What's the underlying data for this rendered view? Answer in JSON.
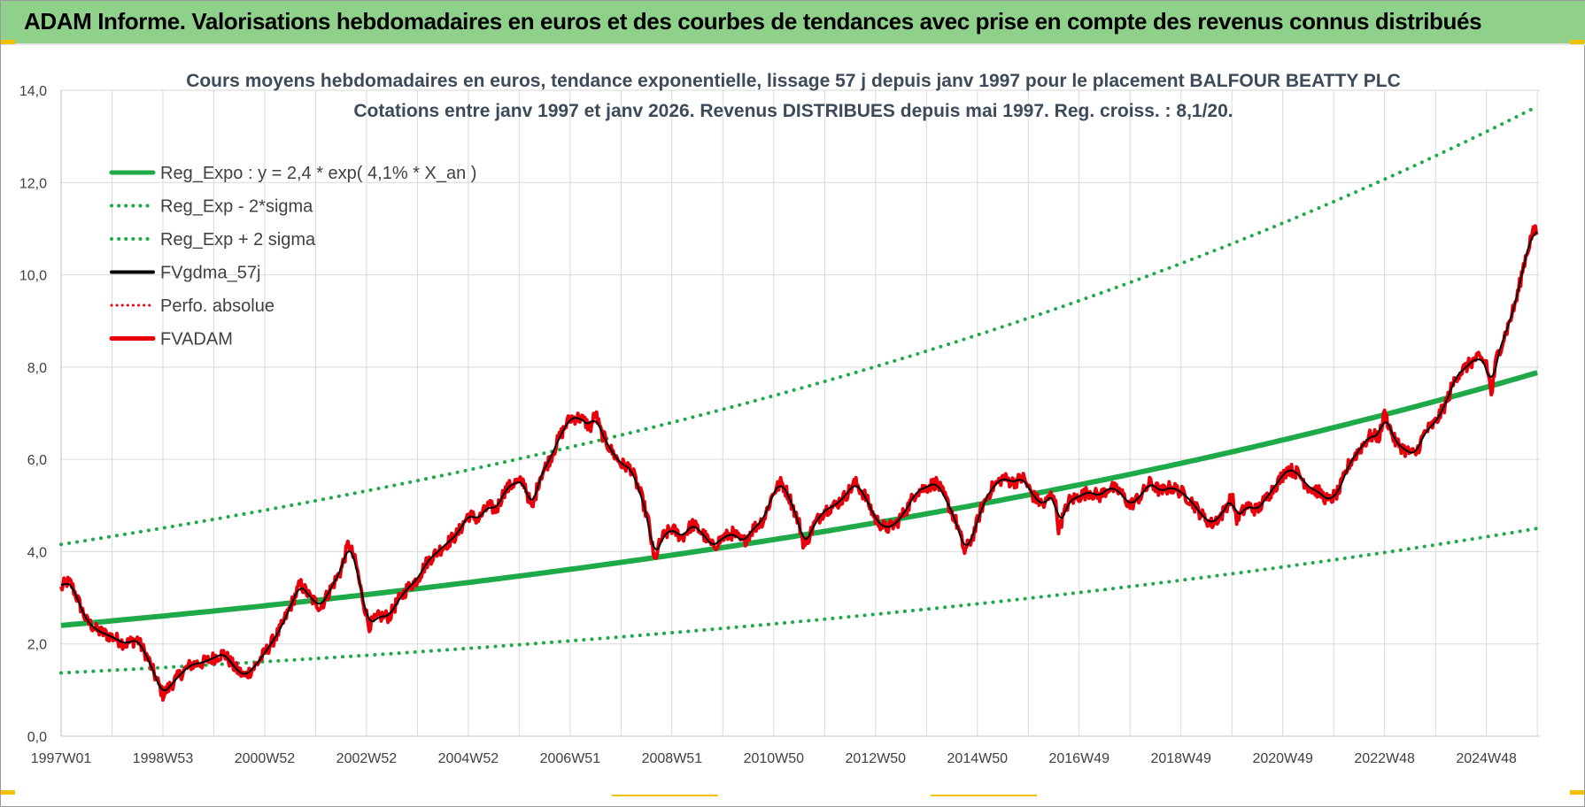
{
  "banner": {
    "title": "ADAM Informe. Valorisations hebdomadaires en euros et des courbes de tendances avec prise en compte des revenus connus distribués"
  },
  "colors": {
    "banner_bg": "#8fd18a",
    "trend": "#1faa4a",
    "black_line": "#000000",
    "red_line": "#e8000b",
    "grid": "#d9d9d9",
    "corner_marks": "#f2c200"
  },
  "chart_data": {
    "type": "line",
    "title_line1": "Cours moyens hebdomadaires en euros, tendance exponentielle, lissage 57 j depuis janv 1997  pour le placement BALFOUR BEATTY PLC",
    "title_line2": "Cotations entre janv 1997 et janv 2026. Revenus DISTRIBUES depuis mai 1997.  Reg. croiss. : 8,1/20.",
    "xlim": [
      1997.0,
      2026.05
    ],
    "ylim": [
      0,
      14
    ],
    "y_ticks": [
      "0,0",
      "2,0",
      "4,0",
      "6,0",
      "8,0",
      "10,0",
      "12,0",
      "14,0"
    ],
    "x_tick_labels": [
      "1997W01",
      "1998W53",
      "2000W52",
      "2002W52",
      "2004W52",
      "2006W51",
      "2008W51",
      "2010W50",
      "2012W50",
      "2014W50",
      "2016W49",
      "2018W49",
      "2020W49",
      "2022W48",
      "2024W48"
    ],
    "x_tick_positions": [
      1997.0,
      1999.0,
      2001.0,
      2003.0,
      2005.0,
      2007.0,
      2009.0,
      2011.0,
      2013.0,
      2015.0,
      2017.0,
      2019.0,
      2021.0,
      2023.0,
      2025.0
    ],
    "grid": true,
    "legend_position": "top-left",
    "legend": [
      {
        "label": "Reg_Expo : y = 2,4 * exp( 4,1% *  X_an )",
        "style": "solid-green"
      },
      {
        "label": "Reg_Exp - 2*sigma",
        "style": "dotted-green"
      },
      {
        "label": "Reg_Exp + 2 sigma",
        "style": "dotted-green"
      },
      {
        "label": "FVgdma_57j",
        "style": "solid-black"
      },
      {
        "label": "Perfo. absolue",
        "style": "dotted-red"
      },
      {
        "label": "FVADAM",
        "style": "solid-red"
      }
    ],
    "trend": {
      "a": 2.4,
      "b": 0.041,
      "lower_factor": 0.5714,
      "upper_factor": 1.7321,
      "x0": 1997.0
    },
    "fvadam_points": [
      [
        1997.0,
        3.2
      ],
      [
        1997.1,
        3.35
      ],
      [
        1997.2,
        3.3
      ],
      [
        1997.35,
        2.9
      ],
      [
        1997.5,
        2.5
      ],
      [
        1997.7,
        2.3
      ],
      [
        1997.9,
        2.2
      ],
      [
        1998.1,
        2.1
      ],
      [
        1998.25,
        2.0
      ],
      [
        1998.5,
        2.1
      ],
      [
        1998.7,
        1.7
      ],
      [
        1998.85,
        1.3
      ],
      [
        1999.0,
        0.9
      ],
      [
        1999.15,
        1.1
      ],
      [
        1999.35,
        1.35
      ],
      [
        1999.55,
        1.55
      ],
      [
        1999.8,
        1.6
      ],
      [
        2000.0,
        1.7
      ],
      [
        2000.2,
        1.8
      ],
      [
        2000.4,
        1.5
      ],
      [
        2000.6,
        1.3
      ],
      [
        2000.8,
        1.5
      ],
      [
        2001.0,
        1.8
      ],
      [
        2001.3,
        2.3
      ],
      [
        2001.5,
        2.8
      ],
      [
        2001.7,
        3.3
      ],
      [
        2001.9,
        3.0
      ],
      [
        2002.1,
        2.8
      ],
      [
        2002.3,
        3.2
      ],
      [
        2002.5,
        3.6
      ],
      [
        2002.65,
        4.2
      ],
      [
        2002.8,
        3.7
      ],
      [
        2002.9,
        3.1
      ],
      [
        2003.05,
        2.4
      ],
      [
        2003.25,
        2.6
      ],
      [
        2003.45,
        2.6
      ],
      [
        2003.6,
        2.9
      ],
      [
        2003.8,
        3.2
      ],
      [
        2004.0,
        3.4
      ],
      [
        2004.2,
        3.8
      ],
      [
        2004.4,
        4.0
      ],
      [
        2004.6,
        4.2
      ],
      [
        2004.8,
        4.4
      ],
      [
        2005.0,
        4.8
      ],
      [
        2005.2,
        4.7
      ],
      [
        2005.4,
        5.0
      ],
      [
        2005.55,
        4.9
      ],
      [
        2005.7,
        5.3
      ],
      [
        2005.9,
        5.5
      ],
      [
        2006.1,
        5.5
      ],
      [
        2006.25,
        4.9
      ],
      [
        2006.4,
        5.6
      ],
      [
        2006.6,
        6.0
      ],
      [
        2006.8,
        6.5
      ],
      [
        2007.0,
        6.9
      ],
      [
        2007.2,
        6.9
      ],
      [
        2007.4,
        6.7
      ],
      [
        2007.5,
        7.0
      ],
      [
        2007.6,
        6.6
      ],
      [
        2007.8,
        6.2
      ],
      [
        2008.0,
        5.9
      ],
      [
        2008.2,
        5.8
      ],
      [
        2008.4,
        5.2
      ],
      [
        2008.55,
        4.6
      ],
      [
        2008.65,
        3.8
      ],
      [
        2008.8,
        4.3
      ],
      [
        2009.0,
        4.5
      ],
      [
        2009.2,
        4.3
      ],
      [
        2009.4,
        4.6
      ],
      [
        2009.6,
        4.4
      ],
      [
        2009.8,
        4.1
      ],
      [
        2010.0,
        4.3
      ],
      [
        2010.2,
        4.4
      ],
      [
        2010.4,
        4.2
      ],
      [
        2010.6,
        4.5
      ],
      [
        2010.8,
        4.7
      ],
      [
        2011.0,
        5.3
      ],
      [
        2011.15,
        5.5
      ],
      [
        2011.3,
        5.2
      ],
      [
        2011.5,
        4.6
      ],
      [
        2011.6,
        4.1
      ],
      [
        2011.8,
        4.6
      ],
      [
        2012.0,
        4.9
      ],
      [
        2012.2,
        5.0
      ],
      [
        2012.4,
        5.2
      ],
      [
        2012.6,
        5.5
      ],
      [
        2012.8,
        5.2
      ],
      [
        2013.0,
        4.7
      ],
      [
        2013.2,
        4.5
      ],
      [
        2013.4,
        4.6
      ],
      [
        2013.6,
        4.9
      ],
      [
        2013.8,
        5.3
      ],
      [
        2014.0,
        5.4
      ],
      [
        2014.2,
        5.5
      ],
      [
        2014.4,
        5.1
      ],
      [
        2014.6,
        4.6
      ],
      [
        2014.75,
        4.0
      ],
      [
        2014.9,
        4.3
      ],
      [
        2015.1,
        5.0
      ],
      [
        2015.3,
        5.4
      ],
      [
        2015.5,
        5.6
      ],
      [
        2015.7,
        5.5
      ],
      [
        2015.9,
        5.6
      ],
      [
        2016.1,
        5.2
      ],
      [
        2016.3,
        5.0
      ],
      [
        2016.5,
        5.3
      ],
      [
        2016.6,
        4.5
      ],
      [
        2016.8,
        5.1
      ],
      [
        2017.0,
        5.2
      ],
      [
        2017.2,
        5.3
      ],
      [
        2017.4,
        5.2
      ],
      [
        2017.6,
        5.4
      ],
      [
        2017.8,
        5.3
      ],
      [
        2018.0,
        5.0
      ],
      [
        2018.2,
        5.2
      ],
      [
        2018.4,
        5.5
      ],
      [
        2018.6,
        5.3
      ],
      [
        2018.8,
        5.4
      ],
      [
        2019.0,
        5.3
      ],
      [
        2019.2,
        5.1
      ],
      [
        2019.4,
        4.8
      ],
      [
        2019.6,
        4.6
      ],
      [
        2019.8,
        4.8
      ],
      [
        2020.0,
        5.2
      ],
      [
        2020.1,
        4.7
      ],
      [
        2020.3,
        5.0
      ],
      [
        2020.5,
        4.9
      ],
      [
        2020.7,
        5.2
      ],
      [
        2020.9,
        5.5
      ],
      [
        2021.1,
        5.8
      ],
      [
        2021.3,
        5.7
      ],
      [
        2021.5,
        5.4
      ],
      [
        2021.7,
        5.3
      ],
      [
        2021.9,
        5.1
      ],
      [
        2022.1,
        5.3
      ],
      [
        2022.3,
        5.9
      ],
      [
        2022.5,
        6.2
      ],
      [
        2022.7,
        6.5
      ],
      [
        2022.9,
        6.5
      ],
      [
        2023.0,
        7.0
      ],
      [
        2023.2,
        6.4
      ],
      [
        2023.4,
        6.2
      ],
      [
        2023.6,
        6.1
      ],
      [
        2023.8,
        6.6
      ],
      [
        2024.0,
        6.8
      ],
      [
        2024.2,
        7.2
      ],
      [
        2024.4,
        7.8
      ],
      [
        2024.6,
        8.0
      ],
      [
        2024.8,
        8.2
      ],
      [
        2025.0,
        8.1
      ],
      [
        2025.1,
        7.4
      ],
      [
        2025.2,
        8.2
      ],
      [
        2025.4,
        8.8
      ],
      [
        2025.6,
        9.5
      ],
      [
        2025.75,
        10.3
      ],
      [
        2025.9,
        10.9
      ],
      [
        2026.0,
        10.95
      ]
    ],
    "jitter_amplitude": 0.14
  }
}
